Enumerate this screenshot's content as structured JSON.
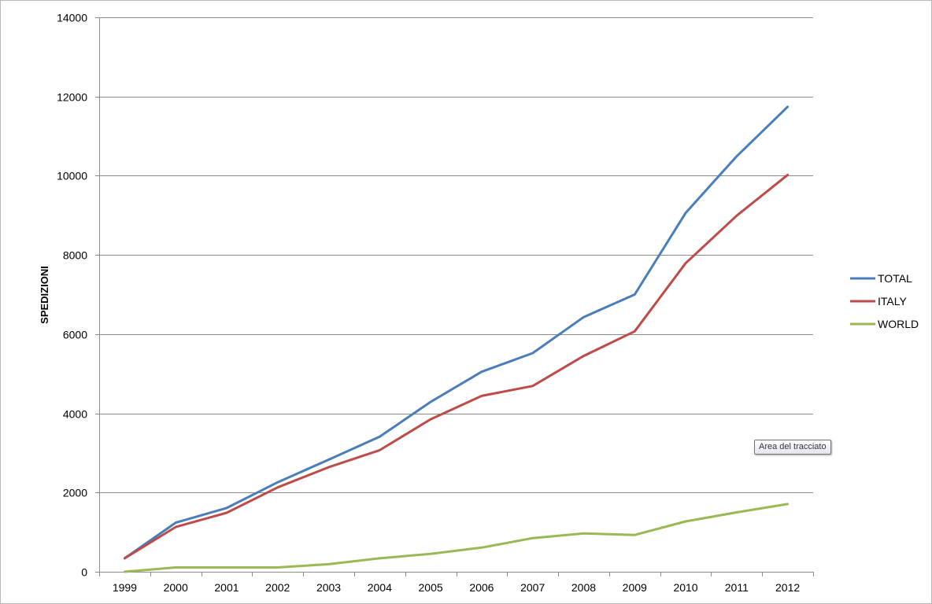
{
  "chart_data": {
    "type": "line",
    "title": "",
    "xlabel": "",
    "ylabel": "SPEDIZIONI",
    "ylim": [
      0,
      14000
    ],
    "yticks": [
      0,
      2000,
      4000,
      6000,
      8000,
      10000,
      12000,
      14000
    ],
    "categories": [
      "1999",
      "2000",
      "2001",
      "2002",
      "2003",
      "2004",
      "2005",
      "2006",
      "2007",
      "2008",
      "2009",
      "2010",
      "2011",
      "2012"
    ],
    "grid": "horizontal",
    "legend_position": "right",
    "series": [
      {
        "name": "TOTAL",
        "color": "#4a7ebb",
        "values": [
          340,
          1240,
          1610,
          2260,
          2830,
          3410,
          4290,
          5050,
          5520,
          6430,
          7000,
          9060,
          10490,
          11740
        ]
      },
      {
        "name": "ITALY",
        "color": "#be4b48",
        "values": [
          340,
          1130,
          1490,
          2130,
          2640,
          3070,
          3850,
          4440,
          4690,
          5450,
          6070,
          7790,
          8990,
          10020
        ]
      },
      {
        "name": "WORLD",
        "color": "#98b954",
        "values": [
          0,
          110,
          110,
          110,
          190,
          340,
          450,
          610,
          850,
          970,
          930,
          1270,
          1500,
          1710
        ]
      }
    ]
  },
  "tooltip": {
    "text": "Area del tracciato"
  }
}
